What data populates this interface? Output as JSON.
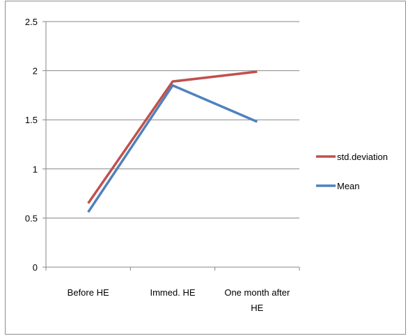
{
  "chart_data": {
    "type": "line",
    "title": "",
    "xlabel": "",
    "ylabel": "",
    "categories": [
      "Before HE",
      "Immed. HE",
      "One month after HE"
    ],
    "category_lines": [
      [
        "Before HE"
      ],
      [
        "Immed. HE"
      ],
      [
        "One month after",
        "HE"
      ]
    ],
    "ylim": [
      0,
      2.5
    ],
    "yticks": [
      "0",
      "0.5",
      "1",
      "1.5",
      "2",
      "2.5"
    ],
    "grid": true,
    "legend_position": "right",
    "series": [
      {
        "name": "std.deviation",
        "color": "#c0504d",
        "values": [
          0.65,
          1.89,
          1.99
        ]
      },
      {
        "name": "Mean",
        "color": "#4f81bd",
        "values": [
          0.56,
          1.85,
          1.48
        ]
      }
    ]
  }
}
